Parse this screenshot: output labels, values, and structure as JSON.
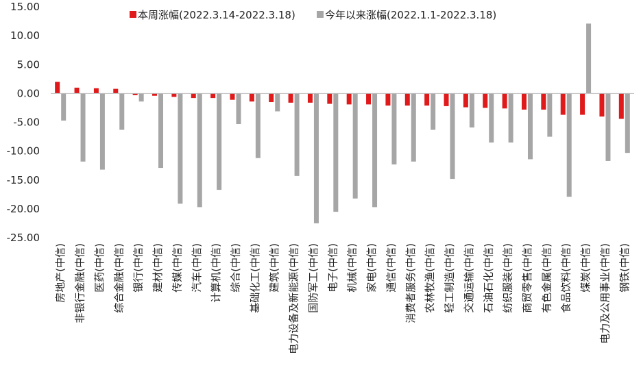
{
  "chart_data": {
    "type": "bar",
    "title": "",
    "xlabel": "",
    "ylabel": "",
    "ylim": [
      -25,
      15
    ],
    "yticks": [
      "15.00",
      "10.00",
      "5.00",
      "0.00",
      "-5.00",
      "-10.00",
      "-15.00",
      "-20.00",
      "-25.00"
    ],
    "grid": false,
    "legend_position": "top",
    "categories": [
      "房地产(中信)",
      "非银行金融(中信)",
      "医药(中信)",
      "综合金融(中信)",
      "银行(中信)",
      "建材(中信)",
      "传媒(中信)",
      "汽车(中信)",
      "计算机(中信)",
      "综合(中信)",
      "基础化工(中信)",
      "建筑(中信)",
      "电力设备及新能源(中信)",
      "国防军工(中信)",
      "电子(中信)",
      "机械(中信)",
      "家电(中信)",
      "通信(中信)",
      "消费者服务(中信)",
      "农林牧渔(中信)",
      "轻工制造(中信)",
      "交通运输(中信)",
      "石油石化(中信)",
      "纺织服装(中信)",
      "商贸零售(中信)",
      "有色金属(中信)",
      "食品饮料(中信)",
      "煤炭(中信)",
      "电力及公用事业(中信)",
      "钢铁(中信)"
    ],
    "series": [
      {
        "name": "本周涨幅(2022.3.14-2022.3.18)",
        "color": "#e0191b",
        "values": [
          2.0,
          1.0,
          0.9,
          0.8,
          -0.3,
          -0.4,
          -0.6,
          -0.8,
          -0.8,
          -1.1,
          -1.4,
          -1.5,
          -1.6,
          -1.6,
          -1.8,
          -1.9,
          -1.9,
          -2.1,
          -2.1,
          -2.1,
          -2.2,
          -2.4,
          -2.5,
          -2.6,
          -2.8,
          -2.8,
          -3.7,
          -3.7,
          -4.0,
          -4.4
        ]
      },
      {
        "name": "今年以来涨幅(2022.1.1-2022.3.18)",
        "color": "#a6a6a6",
        "values": [
          -4.7,
          -11.8,
          -13.2,
          -6.3,
          -1.4,
          -12.9,
          -19.1,
          -19.7,
          -16.7,
          -5.3,
          -11.2,
          -3.1,
          -14.3,
          -22.5,
          -20.5,
          -18.2,
          -19.7,
          -12.3,
          -11.8,
          -6.3,
          -14.8,
          -5.9,
          -8.5,
          -8.5,
          -11.4,
          -7.5,
          -17.9,
          12.1,
          -11.7,
          -10.3
        ]
      }
    ]
  }
}
